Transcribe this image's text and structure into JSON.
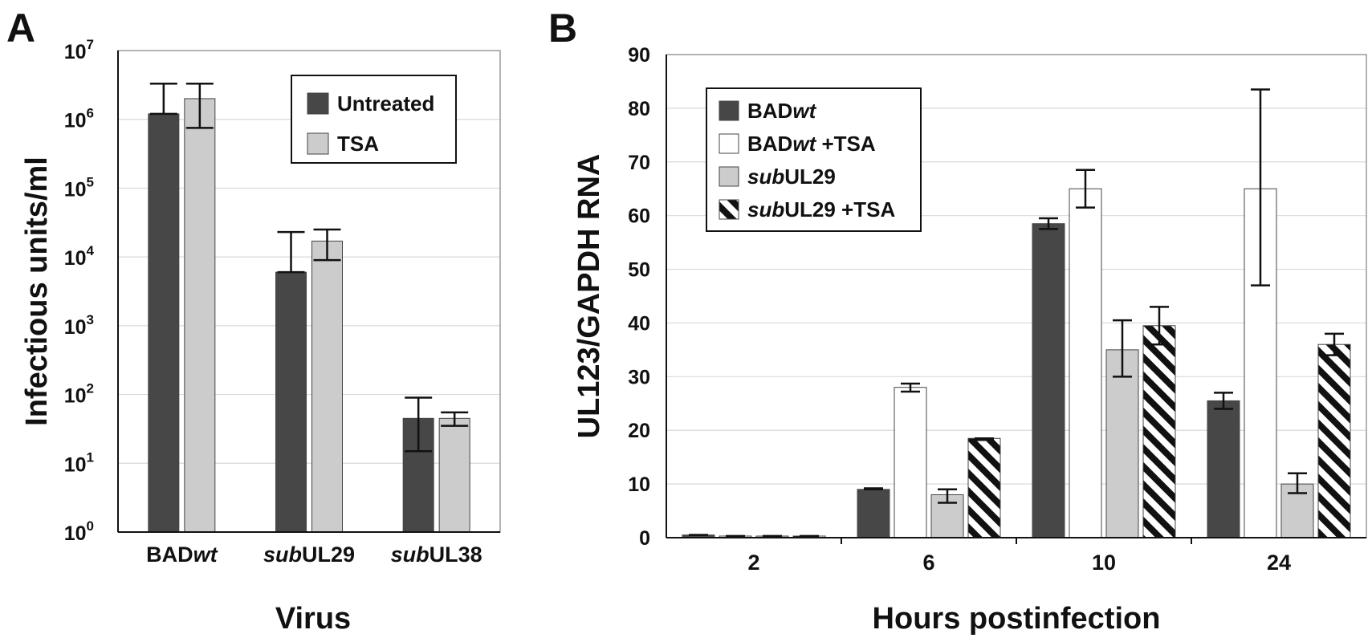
{
  "colors": {
    "dark": "#474747",
    "light": "#cccccc",
    "white": "#ffffff",
    "hatch": "#111111"
  },
  "chart_data": [
    {
      "panel": "A",
      "type": "bar",
      "yscale": "log",
      "ylim": [
        1,
        10000000
      ],
      "ytick_bases": [
        "10",
        "10",
        "10",
        "10",
        "10",
        "10",
        "10",
        "10"
      ],
      "ytick_exps": [
        "0",
        "1",
        "2",
        "3",
        "4",
        "5",
        "6",
        "7"
      ],
      "ytick_values": [
        1,
        10,
        100,
        1000,
        10000,
        100000,
        1000000,
        10000000
      ],
      "grid": true,
      "xlabel": "Virus",
      "ylabel": "Infectious units/ml",
      "categories": [
        {
          "prefix": "BAD",
          "italic": "wt",
          "suffix": ""
        },
        {
          "prefix": "",
          "italic": "sub",
          "suffix": "UL29"
        },
        {
          "prefix": "",
          "italic": "sub",
          "suffix": "UL38"
        }
      ],
      "legend_position": "top-right",
      "series": [
        {
          "name": "Untreated",
          "fill": "dark",
          "values": [
            1200000,
            6000,
            45
          ],
          "err_low": [
            1200000,
            6000,
            15
          ],
          "err_high": [
            3300000,
            23000,
            90
          ]
        },
        {
          "name": "TSA",
          "fill": "light",
          "values": [
            2000000,
            17000,
            45
          ],
          "err_low": [
            750000,
            9000,
            35
          ],
          "err_high": [
            3300000,
            25000,
            55
          ]
        }
      ]
    },
    {
      "panel": "B",
      "type": "bar",
      "ylim": [
        0,
        90
      ],
      "yticks": [
        "0",
        "10",
        "20",
        "30",
        "40",
        "50",
        "60",
        "70",
        "80",
        "90"
      ],
      "grid": true,
      "xlabel": "Hours postinfection",
      "ylabel": "UL123/GAPDH RNA",
      "categories": [
        "2",
        "6",
        "10",
        "24"
      ],
      "legend_position": "top-left",
      "series": [
        {
          "name_prefix": "BAD",
          "name_italic": "wt",
          "name_suffix": "",
          "fill": "dark",
          "values": [
            0.5,
            9,
            58.5,
            25.5
          ],
          "err_low": [
            0.5,
            9,
            57.5,
            24
          ],
          "err_high": [
            0.5,
            9.2,
            59.5,
            27
          ]
        },
        {
          "name_prefix": "BAD",
          "name_italic": "wt",
          "name_suffix": " +TSA",
          "fill": "white",
          "values": [
            0.3,
            28,
            65,
            65
          ],
          "err_low": [
            0.3,
            27.2,
            61.5,
            47
          ],
          "err_high": [
            0.3,
            28.7,
            68.5,
            83.5
          ]
        },
        {
          "name_prefix": "",
          "name_italic": "sub",
          "name_suffix": "UL29",
          "fill": "light",
          "values": [
            0.3,
            8,
            35,
            10
          ],
          "err_low": [
            0.3,
            6.5,
            30,
            8.3
          ],
          "err_high": [
            0.3,
            9,
            40.5,
            12
          ]
        },
        {
          "name_prefix": "",
          "name_italic": "sub",
          "name_suffix": "UL29 +TSA",
          "fill": "hatch",
          "values": [
            0.3,
            18.5,
            39.5,
            36
          ],
          "err_low": [
            0.3,
            18.2,
            36,
            34
          ],
          "err_high": [
            0.3,
            18.5,
            43,
            38
          ]
        }
      ]
    }
  ]
}
